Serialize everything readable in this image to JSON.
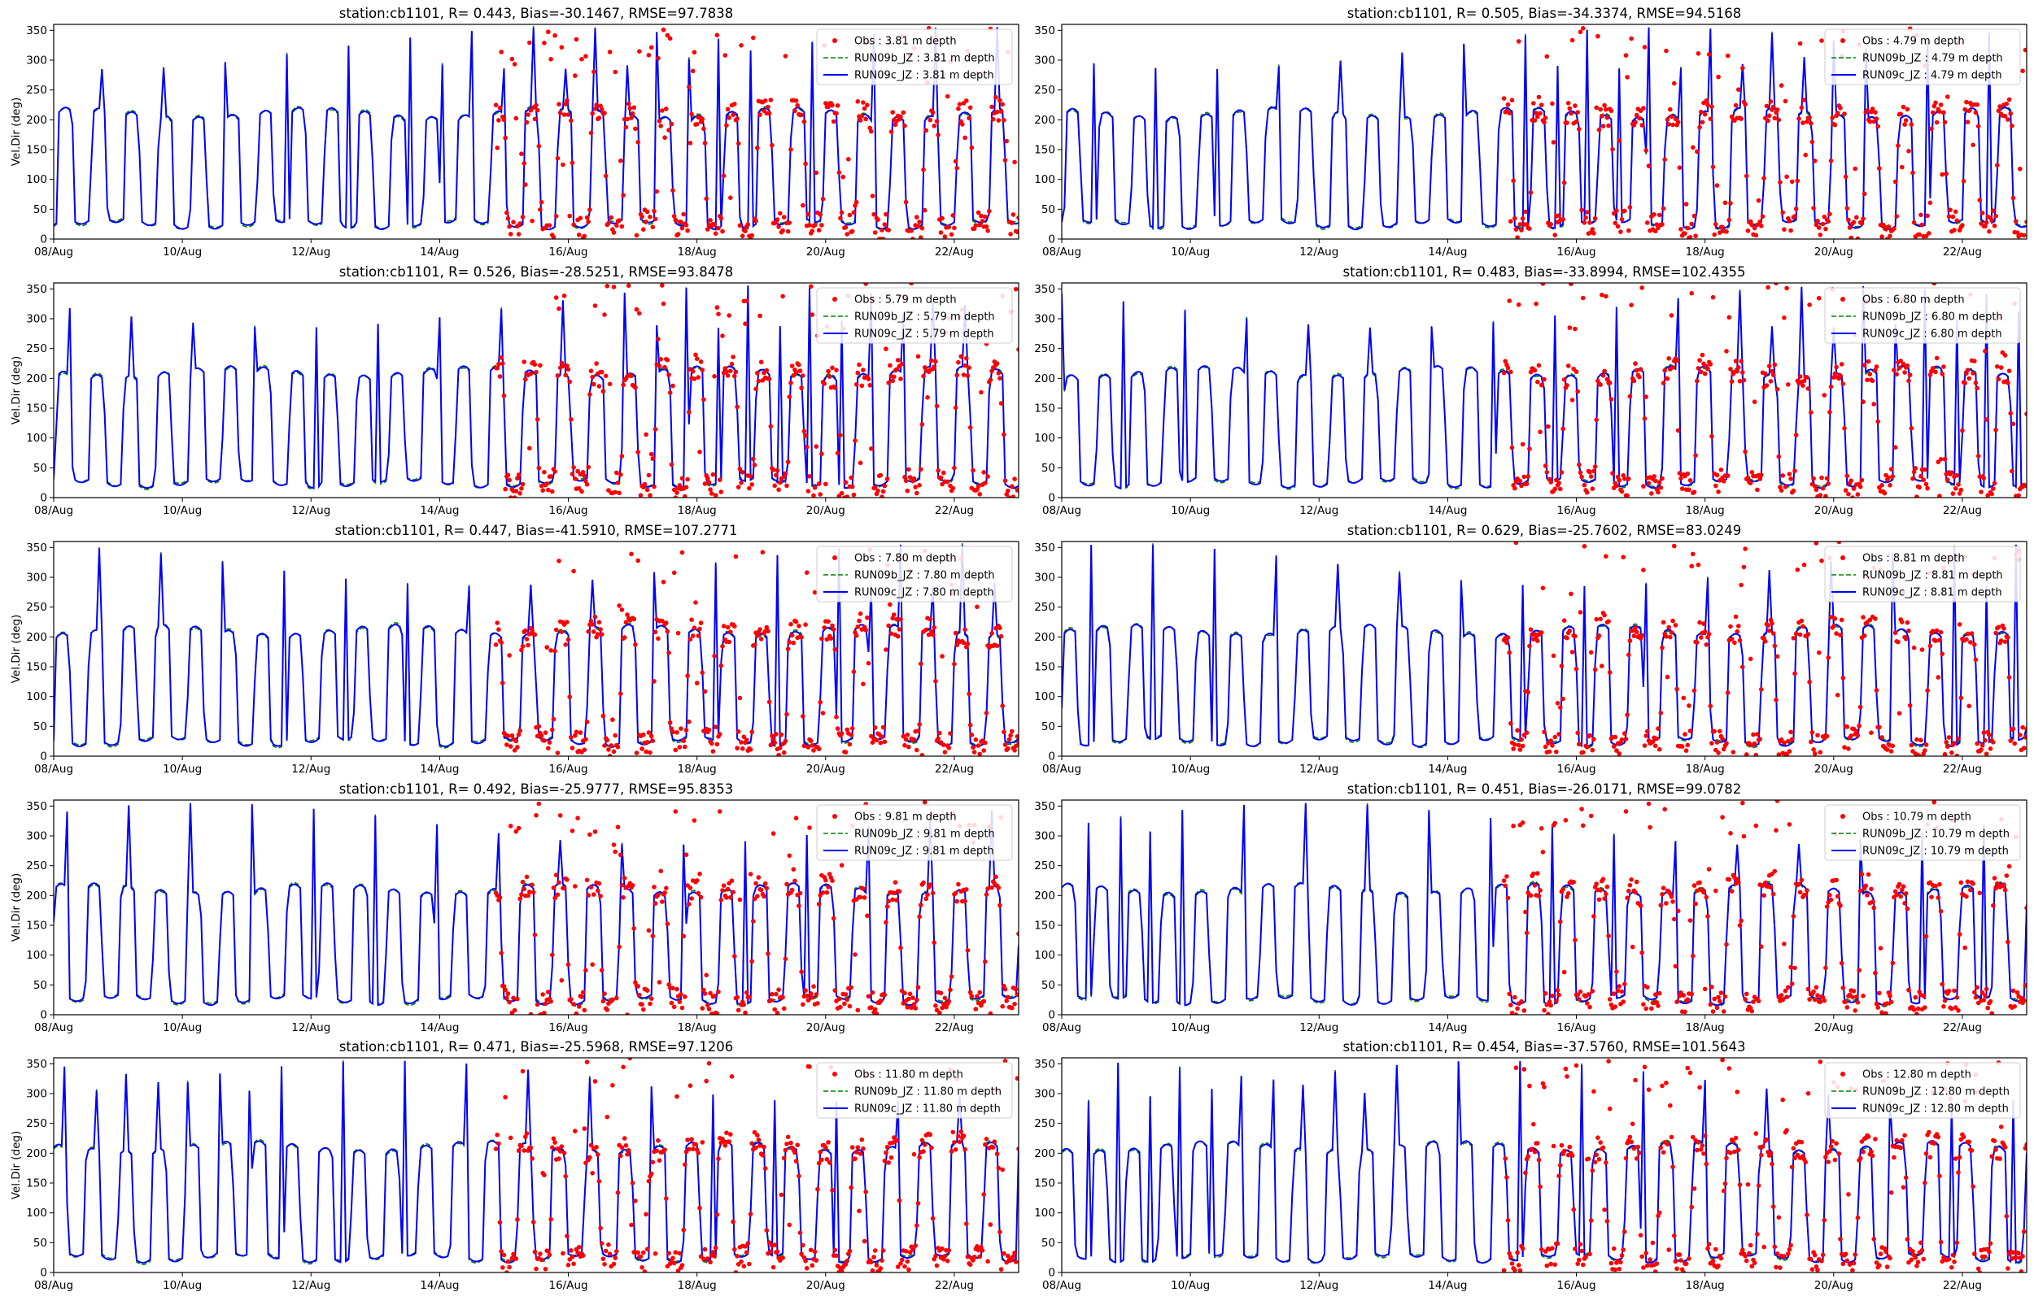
{
  "figure": {
    "station": "cb1101"
  },
  "colors": {
    "obs": "#ff0000",
    "run09b": "#008000",
    "run09c": "#0000ff",
    "axis": "#000000"
  },
  "chart_data": [
    {
      "type": "line",
      "title": "station:cb1101, R= 0.443, Bias=-30.1467, RMSE=97.7838",
      "ylabel": "Vel.Dir (deg)",
      "ylim": [
        0,
        360
      ],
      "xlim": [
        "2021-08-08",
        "2021-08-23"
      ],
      "x_ticks": [
        "08/Aug",
        "10/Aug",
        "12/Aug",
        "14/Aug",
        "16/Aug",
        "18/Aug",
        "20/Aug",
        "22/Aug"
      ],
      "y_ticks": [
        0,
        50,
        100,
        150,
        200,
        250,
        300,
        350
      ],
      "obs_start": "2021-08-14 21:00",
      "legend": [
        "Obs : 3.81 m depth",
        "RUN09b_JZ : 3.81 m depth",
        "RUN09c_JZ : 3.81 m depth"
      ]
    },
    {
      "type": "line",
      "title": "station:cb1101, R= 0.505, Bias=-34.3374, RMSE=94.5168",
      "ylabel": "",
      "ylim": [
        0,
        360
      ],
      "xlim": [
        "2021-08-08",
        "2021-08-23"
      ],
      "x_ticks": [
        "08/Aug",
        "10/Aug",
        "12/Aug",
        "14/Aug",
        "16/Aug",
        "18/Aug",
        "20/Aug",
        "22/Aug"
      ],
      "y_ticks": [
        0,
        50,
        100,
        150,
        200,
        250,
        300,
        350
      ],
      "obs_start": "2021-08-14 21:00",
      "legend": [
        "Obs : 4.79 m depth",
        "RUN09b_JZ : 4.79 m depth",
        "RUN09c_JZ : 4.79 m depth"
      ]
    },
    {
      "type": "line",
      "title": "station:cb1101, R= 0.526, Bias=-28.5251, RMSE=93.8478",
      "ylabel": "Vel.Dir (deg)",
      "ylim": [
        0,
        360
      ],
      "xlim": [
        "2021-08-08",
        "2021-08-23"
      ],
      "x_ticks": [
        "08/Aug",
        "10/Aug",
        "12/Aug",
        "14/Aug",
        "16/Aug",
        "18/Aug",
        "20/Aug",
        "22/Aug"
      ],
      "y_ticks": [
        0,
        50,
        100,
        150,
        200,
        250,
        300,
        350
      ],
      "obs_start": "2021-08-14 21:00",
      "legend": [
        "Obs : 5.79 m depth",
        "RUN09b_JZ : 5.79 m depth",
        "RUN09c_JZ : 5.79 m depth"
      ]
    },
    {
      "type": "line",
      "title": "station:cb1101, R= 0.483, Bias=-33.8994, RMSE=102.4355",
      "ylabel": "",
      "ylim": [
        0,
        360
      ],
      "xlim": [
        "2021-08-08",
        "2021-08-23"
      ],
      "x_ticks": [
        "08/Aug",
        "10/Aug",
        "12/Aug",
        "14/Aug",
        "16/Aug",
        "18/Aug",
        "20/Aug",
        "22/Aug"
      ],
      "y_ticks": [
        0,
        50,
        100,
        150,
        200,
        250,
        300,
        350
      ],
      "obs_start": "2021-08-14 21:00",
      "legend": [
        "Obs : 6.80 m depth",
        "RUN09b_JZ : 6.80 m depth",
        "RUN09c_JZ : 6.80 m depth"
      ]
    },
    {
      "type": "line",
      "title": "station:cb1101, R= 0.447, Bias=-41.5910, RMSE=107.2771",
      "ylabel": "Vel.Dir (deg)",
      "ylim": [
        0,
        360
      ],
      "xlim": [
        "2021-08-08",
        "2021-08-23"
      ],
      "x_ticks": [
        "08/Aug",
        "10/Aug",
        "12/Aug",
        "14/Aug",
        "16/Aug",
        "18/Aug",
        "20/Aug",
        "22/Aug"
      ],
      "y_ticks": [
        0,
        50,
        100,
        150,
        200,
        250,
        300,
        350
      ],
      "obs_start": "2021-08-14 21:00",
      "legend": [
        "Obs : 7.80 m depth",
        "RUN09b_JZ : 7.80 m depth",
        "RUN09c_JZ : 7.80 m depth"
      ]
    },
    {
      "type": "line",
      "title": "station:cb1101, R= 0.629, Bias=-25.7602, RMSE=83.0249",
      "ylabel": "",
      "ylim": [
        0,
        360
      ],
      "xlim": [
        "2021-08-08",
        "2021-08-23"
      ],
      "x_ticks": [
        "08/Aug",
        "10/Aug",
        "12/Aug",
        "14/Aug",
        "16/Aug",
        "18/Aug",
        "20/Aug",
        "22/Aug"
      ],
      "y_ticks": [
        0,
        50,
        100,
        150,
        200,
        250,
        300,
        350
      ],
      "obs_start": "2021-08-14 21:00",
      "legend": [
        "Obs : 8.81 m depth",
        "RUN09b_JZ : 8.81 m depth",
        "RUN09c_JZ : 8.81 m depth"
      ]
    },
    {
      "type": "line",
      "title": "station:cb1101, R= 0.492, Bias=-25.9777, RMSE=95.8353",
      "ylabel": "Vel.Dir (deg)",
      "ylim": [
        0,
        360
      ],
      "xlim": [
        "2021-08-08",
        "2021-08-23"
      ],
      "x_ticks": [
        "08/Aug",
        "10/Aug",
        "12/Aug",
        "14/Aug",
        "16/Aug",
        "18/Aug",
        "20/Aug",
        "22/Aug"
      ],
      "y_ticks": [
        0,
        50,
        100,
        150,
        200,
        250,
        300,
        350
      ],
      "obs_start": "2021-08-14 21:00",
      "legend": [
        "Obs : 9.81 m depth",
        "RUN09b_JZ : 9.81 m depth",
        "RUN09c_JZ : 9.81 m depth"
      ]
    },
    {
      "type": "line",
      "title": "station:cb1101, R= 0.451, Bias=-26.0171, RMSE=99.0782",
      "ylabel": "",
      "ylim": [
        0,
        360
      ],
      "xlim": [
        "2021-08-08",
        "2021-08-23"
      ],
      "x_ticks": [
        "08/Aug",
        "10/Aug",
        "12/Aug",
        "14/Aug",
        "16/Aug",
        "18/Aug",
        "20/Aug",
        "22/Aug"
      ],
      "y_ticks": [
        0,
        50,
        100,
        150,
        200,
        250,
        300,
        350
      ],
      "obs_start": "2021-08-14 21:00",
      "legend": [
        "Obs : 10.79 m depth",
        "RUN09b_JZ : 10.79 m depth",
        "RUN09c_JZ : 10.79 m depth"
      ]
    },
    {
      "type": "line",
      "title": "station:cb1101, R= 0.471, Bias=-25.5968, RMSE=97.1206",
      "ylabel": "Vel.Dir (deg)",
      "ylim": [
        0,
        360
      ],
      "xlim": [
        "2021-08-08",
        "2021-08-23"
      ],
      "x_ticks": [
        "08/Aug",
        "10/Aug",
        "12/Aug",
        "14/Aug",
        "16/Aug",
        "18/Aug",
        "20/Aug",
        "22/Aug"
      ],
      "y_ticks": [
        0,
        50,
        100,
        150,
        200,
        250,
        300,
        350
      ],
      "obs_start": "2021-08-14 21:00",
      "legend": [
        "Obs : 11.80 m depth",
        "RUN09b_JZ : 11.80 m depth",
        "RUN09c_JZ : 11.80 m depth"
      ]
    },
    {
      "type": "line",
      "title": "station:cb1101, R= 0.454, Bias=-37.5760, RMSE=101.5643",
      "ylabel": "",
      "ylim": [
        0,
        360
      ],
      "xlim": [
        "2021-08-08",
        "2021-08-23"
      ],
      "x_ticks": [
        "08/Aug",
        "10/Aug",
        "12/Aug",
        "14/Aug",
        "16/Aug",
        "18/Aug",
        "20/Aug",
        "22/Aug"
      ],
      "y_ticks": [
        0,
        50,
        100,
        150,
        200,
        250,
        300,
        350
      ],
      "obs_start": "2021-08-14 21:00",
      "legend": [
        "Obs : 12.80 m depth",
        "RUN09b_JZ : 12.80 m depth",
        "RUN09c_JZ : 12.80 m depth"
      ]
    }
  ]
}
